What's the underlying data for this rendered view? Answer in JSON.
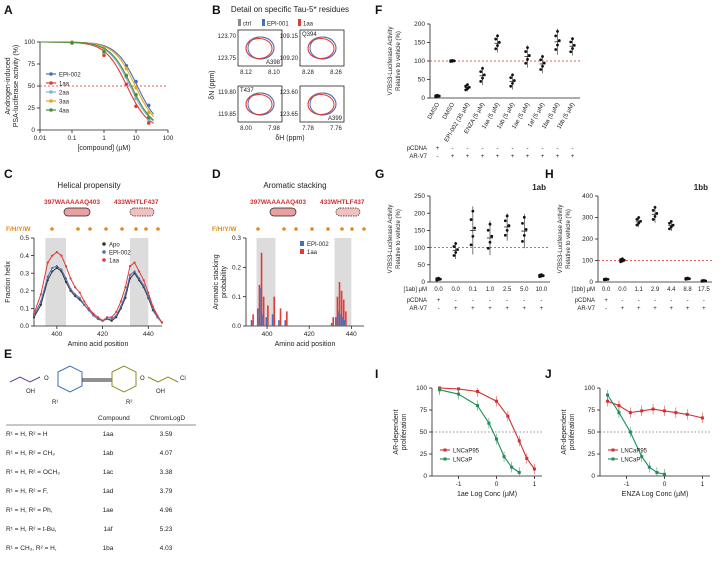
{
  "panels": {
    "A": {
      "label": "A"
    },
    "B": {
      "label": "B"
    },
    "C": {
      "label": "C"
    },
    "D": {
      "label": "D"
    },
    "E": {
      "label": "E"
    },
    "F": {
      "label": "F"
    },
    "G": {
      "label": "G"
    },
    "H": {
      "label": "H"
    },
    "I": {
      "label": "I"
    },
    "J": {
      "label": "J"
    }
  },
  "colors": {
    "EPI002": "#4a6fb5",
    "c1aa": "#e53935",
    "c2aa": "#7fb3d5",
    "c3aa": "#e6a817",
    "c4aa": "#4a8f3a",
    "ctrl": "#888888",
    "LNCaP95": "#d32f2f",
    "LNCaP": "#1e8f5a",
    "ref": "#d32f2f",
    "helix_band": "#dcdcdc"
  },
  "chart_data": [
    {
      "id": "A",
      "type": "line",
      "xlabel": "[compound] (µM)",
      "ylabel": "Androgen-induced\nPSA-luciferase activity (%)",
      "xscale": "log",
      "xlim": [
        0.01,
        100
      ],
      "ylim": [
        0,
        100
      ],
      "xticks": [
        "0.01",
        "0.1",
        "1",
        "10",
        "100"
      ],
      "yticks": [
        "0",
        "25",
        "50",
        "75",
        "100"
      ],
      "refline": 50,
      "series": [
        {
          "name": "EPI-002",
          "key": "EPI002",
          "x": [
            0.1,
            1,
            5,
            10,
            25
          ],
          "y": [
            99,
            93,
            73,
            55,
            28
          ]
        },
        {
          "name": "1aa",
          "key": "c1aa",
          "x": [
            0.1,
            1,
            5,
            10,
            25
          ],
          "y": [
            99,
            85,
            52,
            27,
            8
          ]
        },
        {
          "name": "2aa",
          "key": "c2aa",
          "x": [
            0.1,
            1,
            5,
            10,
            25
          ],
          "y": [
            99,
            88,
            60,
            36,
            12
          ]
        },
        {
          "name": "3aa",
          "key": "c3aa",
          "x": [
            0.1,
            1,
            5,
            10,
            25
          ],
          "y": [
            100,
            93,
            70,
            48,
            20
          ]
        },
        {
          "name": "4aa",
          "key": "c4aa",
          "x": [
            0.1,
            1,
            5,
            10,
            25
          ],
          "y": [
            99,
            89,
            62,
            40,
            14
          ]
        }
      ]
    },
    {
      "id": "B",
      "type": "scatter",
      "title": "Detail on specific Tau-5* residues",
      "legend": [
        "ctrl",
        "EPI-001",
        "1aa"
      ],
      "xlabel": "δH (ppm)",
      "ylabel": "δN (ppm)",
      "subplots": [
        {
          "tag": "",
          "yticks": [
            "123.70",
            "123.75"
          ],
          "xticks": [
            "8.12",
            "8.10"
          ],
          "res": "A398"
        },
        {
          "tag": "Q394",
          "yticks": [
            "109.15",
            "109.20"
          ],
          "xticks": [
            "8.28",
            "8.26"
          ],
          "res": ""
        },
        {
          "tag": "T437",
          "yticks": [
            "119.80",
            "119.85"
          ],
          "xticks": [
            "8.00",
            "7.98"
          ],
          "res": ""
        },
        {
          "tag": "",
          "yticks": [
            "123.60",
            "123.65"
          ],
          "xticks": [
            "7.78",
            "7.76"
          ],
          "res": "A399"
        }
      ]
    },
    {
      "id": "C",
      "type": "line",
      "title": "Helical propensity",
      "motif1": "397WAAAAAQ403",
      "motif2": "433WHTLF437",
      "fhyw": "F/H/Y/W",
      "xlabel": "Amino acid position",
      "ylabel": "Fraction helix",
      "xlim": [
        390,
        446
      ],
      "ylim": [
        0,
        0.5
      ],
      "xticks": [
        "400",
        "420",
        "440"
      ],
      "yticks": [
        "0.0",
        "0.1",
        "0.2",
        "0.3",
        "0.4",
        "0.5"
      ],
      "bands": [
        [
          395,
          404
        ],
        [
          432,
          440
        ]
      ],
      "series": [
        {
          "name": "Apo",
          "key": "Apo",
          "x": [
            390,
            393,
            396,
            398,
            400,
            402,
            404,
            406,
            408,
            410,
            412,
            414,
            416,
            418,
            420,
            422,
            424,
            426,
            428,
            430,
            432,
            434,
            436,
            438,
            440,
            442,
            444,
            446
          ],
          "y": [
            0.05,
            0.12,
            0.26,
            0.31,
            0.33,
            0.31,
            0.25,
            0.2,
            0.17,
            0.15,
            0.12,
            0.09,
            0.06,
            0.04,
            0.03,
            0.04,
            0.03,
            0.05,
            0.1,
            0.16,
            0.27,
            0.3,
            0.26,
            0.22,
            0.16,
            0.09,
            0.05,
            0.02
          ]
        },
        {
          "name": "EPI-002",
          "key": "EPI002",
          "x": [
            390,
            393,
            396,
            398,
            400,
            402,
            404,
            406,
            408,
            410,
            412,
            414,
            416,
            418,
            420,
            422,
            424,
            426,
            428,
            430,
            432,
            434,
            436,
            438,
            440,
            442,
            444,
            446
          ],
          "y": [
            0.06,
            0.14,
            0.28,
            0.33,
            0.34,
            0.32,
            0.27,
            0.21,
            0.18,
            0.16,
            0.12,
            0.09,
            0.06,
            0.04,
            0.03,
            0.04,
            0.04,
            0.06,
            0.11,
            0.18,
            0.29,
            0.31,
            0.27,
            0.23,
            0.17,
            0.1,
            0.05,
            0.02
          ]
        },
        {
          "name": "1aa",
          "key": "c1aa",
          "x": [
            390,
            393,
            396,
            398,
            400,
            402,
            404,
            406,
            408,
            410,
            412,
            414,
            416,
            418,
            420,
            422,
            424,
            426,
            428,
            430,
            432,
            434,
            436,
            438,
            440,
            442,
            444,
            446
          ],
          "y": [
            0.07,
            0.18,
            0.36,
            0.4,
            0.42,
            0.4,
            0.34,
            0.27,
            0.22,
            0.19,
            0.14,
            0.1,
            0.07,
            0.05,
            0.03,
            0.05,
            0.05,
            0.08,
            0.14,
            0.22,
            0.34,
            0.36,
            0.31,
            0.26,
            0.19,
            0.11,
            0.06,
            0.02
          ]
        }
      ]
    },
    {
      "id": "D",
      "type": "bar",
      "title": "Aromatic stacking",
      "motif1": "397WAAAAAQ403",
      "motif2": "433WHTLF437",
      "fhyw": "F/H/Y/W",
      "xlabel": "Amino acid position",
      "ylabel": "Aromatic stacking\nprobability",
      "xlim": [
        390,
        446
      ],
      "ylim": [
        0,
        0.3
      ],
      "xticks": [
        "400",
        "420",
        "440"
      ],
      "yticks": [
        "0.0",
        "0.1",
        "0.2",
        "0.3"
      ],
      "bands": [
        [
          395,
          404
        ],
        [
          432,
          440
        ]
      ],
      "positions": [
        393,
        396,
        397,
        398,
        400,
        403,
        406,
        409,
        431,
        433,
        434,
        435,
        436,
        437
      ],
      "series": [
        {
          "name": "EPI-002",
          "key": "EPI002",
          "values": [
            0.02,
            0.06,
            0.13,
            0.04,
            0.03,
            0.04,
            0.02,
            0.02,
            0.01,
            0.03,
            0.05,
            0.04,
            0.03,
            0.02
          ]
        },
        {
          "name": "1aa",
          "key": "c1aa",
          "values": [
            0.04,
            0.14,
            0.25,
            0.1,
            0.07,
            0.1,
            0.06,
            0.05,
            0.03,
            0.1,
            0.15,
            0.12,
            0.09,
            0.05
          ]
        }
      ]
    },
    {
      "id": "E",
      "type": "table",
      "columns": [
        "",
        "Compound",
        "ChromLogD"
      ],
      "rows": [
        [
          "R¹ = H, R² = H",
          "1aa",
          "3.59"
        ],
        [
          "R¹ = H, R² = CH₃",
          "1ab",
          "4.07"
        ],
        [
          "R¹ = H, R² = OCH₃",
          "1ac",
          "3.38"
        ],
        [
          "R¹ = H, R² = F,",
          "1ad",
          "3.79"
        ],
        [
          "R¹ = H, R² = Ph,",
          "1ae",
          "4.96"
        ],
        [
          "R¹ = H, R² = t-Bu,",
          "1af",
          "5.23"
        ],
        [
          "R¹ = CH₃, R² = H,",
          "1ba",
          "4.03"
        ],
        [
          "R¹ = CH₃, R² = CH₃",
          "1bb",
          "4.55"
        ]
      ],
      "structure": {
        "oh1": "OH",
        "oh2": "OH",
        "r1": "R¹",
        "r2": "R²",
        "o1": "O",
        "o2": "O",
        "cl": "Cl"
      }
    },
    {
      "id": "F",
      "type": "scatter",
      "ylabel": "V7BS3-Luciferase Activity\nRelative to vehicle (%)",
      "ylim": [
        0,
        200
      ],
      "yticks": [
        "0",
        "50",
        "100",
        "150",
        "200"
      ],
      "refline": 100,
      "categories": [
        "DMSO",
        "DMSO",
        "EPI-002 (35 µM)",
        "ENZA (5 µM)",
        "1aa (5 µM)",
        "1ab (5 µM)",
        "1ae (5 µM)",
        "1af (5 µM)",
        "1ba (5 µM)",
        "1bb (5 µM)"
      ],
      "means": [
        5,
        100,
        28,
        60,
        148,
        45,
        112,
        92,
        152,
        140
      ],
      "errs": [
        3,
        2,
        10,
        25,
        25,
        22,
        30,
        25,
        35,
        25
      ],
      "pcdna": [
        "+",
        "-",
        "-",
        "-",
        "-",
        "-",
        "-",
        "-",
        "-",
        "-"
      ],
      "arv7": [
        "-",
        "+",
        "+",
        "+",
        "+",
        "+",
        "+",
        "+",
        "+",
        "+"
      ],
      "row_labels": [
        "pCDNA",
        "AR-V7"
      ]
    },
    {
      "id": "G",
      "type": "scatter",
      "title": "1ab",
      "ylabel": "V7BS3-Luciferase Activity\nRelative to vehicle (%)",
      "ylim": [
        0,
        250
      ],
      "yticks": [
        "0",
        "50",
        "100",
        "150",
        "200",
        "250"
      ],
      "refline": 100,
      "conc_label": "[1ab] µM",
      "conc": [
        "0.0",
        "0.0",
        "0.1",
        "1.0",
        "2.5",
        "5.0",
        "10.0"
      ],
      "means": [
        8,
        92,
        150,
        128,
        160,
        148,
        18
      ],
      "errs": [
        4,
        25,
        70,
        50,
        40,
        50,
        4
      ],
      "pcdna": [
        "+",
        "-",
        "-",
        "-",
        "-",
        "-",
        "-"
      ],
      "arv7": [
        "-",
        "+",
        "+",
        "+",
        "+",
        "+",
        "+"
      ],
      "row_labels": [
        "pCDNA",
        "AR-V7"
      ]
    },
    {
      "id": "H",
      "type": "scatter",
      "title": "1bb",
      "ylabel": "V7BS3-Luciferase Activity\nRelative to vehicle (%)",
      "ylim": [
        0,
        400
      ],
      "yticks": [
        "0",
        "100",
        "200",
        "300",
        "400"
      ],
      "refline": 100,
      "conc_label": "[1bb] µM",
      "conc": [
        "0.0",
        "0.0",
        "1.1",
        "2.9",
        "4.4",
        "8.8",
        "17.5"
      ],
      "means": [
        12,
        100,
        280,
        315,
        262,
        15,
        5
      ],
      "errs": [
        3,
        10,
        25,
        40,
        25,
        4,
        3
      ],
      "pcdna": [
        "+",
        "-",
        "-",
        "-",
        "-",
        "-",
        "-"
      ],
      "arv7": [
        "-",
        "+",
        "+",
        "+",
        "+",
        "+",
        "+"
      ],
      "row_labels": [
        "pCDNA",
        "AR-V7"
      ]
    },
    {
      "id": "I",
      "type": "line",
      "xlabel": "1ae Log Conc (µM)",
      "ylabel": "AR-dependent\nproliferation",
      "xlim": [
        -1.7,
        1.2
      ],
      "ylim": [
        0,
        100
      ],
      "xticks": [
        "-1",
        "0",
        "1"
      ],
      "yticks": [
        "0",
        "25",
        "50",
        "75",
        "100"
      ],
      "refline": 50,
      "series": [
        {
          "name": "LNCaP95",
          "key": "LNCaP95",
          "x": [
            -1.5,
            -1,
            -0.5,
            0,
            0.3,
            0.6,
            0.8,
            1.0
          ],
          "y": [
            100,
            99,
            96,
            85,
            68,
            40,
            20,
            8
          ]
        },
        {
          "name": "LNCaP",
          "key": "LNCaP",
          "x": [
            -1.5,
            -1,
            -0.5,
            -0.2,
            0,
            0.2,
            0.4,
            0.6
          ],
          "y": [
            98,
            93,
            80,
            60,
            42,
            22,
            10,
            4
          ]
        }
      ]
    },
    {
      "id": "J",
      "type": "line",
      "xlabel": "ENZA Log Conc (µM)",
      "ylabel": "AR-dependent\nproliferation",
      "xlim": [
        -1.7,
        1.2
      ],
      "ylim": [
        0,
        100
      ],
      "xticks": [
        "-1",
        "0",
        "1"
      ],
      "yticks": [
        "0",
        "25",
        "50",
        "75",
        "100"
      ],
      "refline": 50,
      "series": [
        {
          "name": "LNCaP95",
          "key": "LNCaP95",
          "x": [
            -1.5,
            -1.2,
            -0.9,
            -0.6,
            -0.3,
            0,
            0.3,
            0.6,
            1.0
          ],
          "y": [
            85,
            80,
            72,
            74,
            76,
            74,
            72,
            70,
            66
          ]
        },
        {
          "name": "LNCaP",
          "key": "LNCaP",
          "x": [
            -1.5,
            -1.2,
            -0.9,
            -0.6,
            -0.4,
            -0.2,
            0
          ],
          "y": [
            92,
            72,
            50,
            22,
            10,
            4,
            2
          ]
        }
      ]
    }
  ]
}
